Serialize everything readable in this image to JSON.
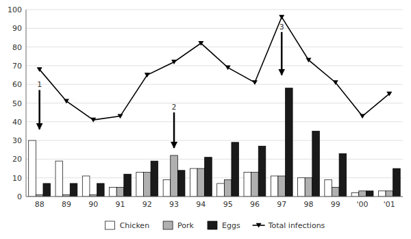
{
  "chart_data": {
    "type": "bar",
    "categories": [
      "88",
      "89",
      "90",
      "91",
      "92",
      "93",
      "94",
      "95",
      "96",
      "97",
      "98",
      "99",
      "'00",
      "'01"
    ],
    "series": [
      {
        "name": "Chicken",
        "color": "#ffffff",
        "values": [
          30,
          19,
          11,
          5,
          13,
          9,
          15,
          7,
          13,
          11,
          10,
          9,
          2,
          3
        ]
      },
      {
        "name": "Pork",
        "color": "#b0b0b0",
        "values": [
          1,
          1,
          1,
          5,
          13,
          22,
          15,
          9,
          13,
          11,
          10,
          5,
          3,
          3
        ]
      },
      {
        "name": "Eggs",
        "color": "#1a1a1a",
        "values": [
          7,
          7,
          7,
          12,
          19,
          14,
          21,
          29,
          27,
          58,
          35,
          23,
          3,
          15
        ]
      },
      {
        "name": "Total infections",
        "type": "line",
        "color": "#000000",
        "marker": "triangle-down",
        "values": [
          68,
          51,
          41,
          43,
          65,
          72,
          82,
          69,
          61,
          96,
          73,
          61,
          43,
          55
        ]
      }
    ],
    "annotations": [
      {
        "text": "1",
        "x": "88",
        "y_start": 57,
        "y_end": 36
      },
      {
        "text": "2",
        "x": "93",
        "y_start": 45,
        "y_end": 26
      },
      {
        "text": "3",
        "x": "97",
        "y_start": 88,
        "y_end": 65
      }
    ],
    "ylim": [
      0,
      100
    ],
    "yticks": [
      0,
      10,
      20,
      30,
      40,
      50,
      60,
      70,
      80,
      90,
      100
    ],
    "grid": true,
    "legend": "bottom"
  }
}
